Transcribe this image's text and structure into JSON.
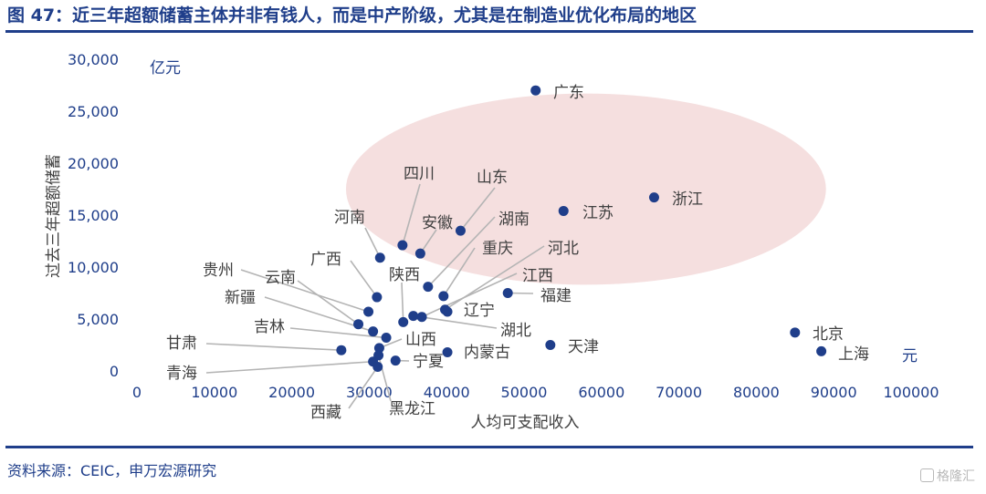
{
  "figure": {
    "title": "图 47：近三年超额储蓄主体并非有钱人，而是中产阶级，尤其是在制造业优化布局的地区",
    "source": "资料来源：CEIC，申万宏源研究",
    "watermark": "格隆汇"
  },
  "colors": {
    "title": "#1f3e8a",
    "point": "#1f3e8a",
    "ellipse": "#f3d9d9",
    "leader": "#b4b4b4",
    "label": "#404040",
    "tick": "#1f3e8a"
  },
  "chart_data": {
    "type": "scatter",
    "xlabel": "人均可支配收入",
    "ylabel": "过去三年超额储蓄",
    "x_unit": "元",
    "y_unit": "亿元",
    "xlim": [
      0,
      100000
    ],
    "ylim": [
      0,
      30000
    ],
    "x_ticks": [
      0,
      10000,
      20000,
      30000,
      40000,
      50000,
      60000,
      70000,
      80000,
      90000,
      100000
    ],
    "x_tick_labels": [
      "0",
      "10000",
      "20000",
      "30000",
      "40000",
      "50000",
      "60000",
      "70000",
      "80000",
      "90000",
      "100000"
    ],
    "y_ticks": [
      0,
      5000,
      10000,
      15000,
      20000,
      25000,
      30000
    ],
    "y_tick_labels": [
      "0",
      "5,000",
      "10,000",
      "15,000",
      "20,000",
      "25,000",
      "30,000"
    ],
    "grid": false,
    "highlight_region": {
      "shape": "ellipse",
      "cx": 58000,
      "cy": 17500,
      "rx": 31000,
      "ry": 9200
    },
    "points": [
      {
        "name": "广东",
        "x": 51500,
        "y": 27000
      },
      {
        "name": "浙江",
        "x": 66800,
        "y": 16700
      },
      {
        "name": "江苏",
        "x": 55100,
        "y": 15400
      },
      {
        "name": "山东",
        "x": 41800,
        "y": 13500
      },
      {
        "name": "四川",
        "x": 34300,
        "y": 12100
      },
      {
        "name": "安徽",
        "x": 36600,
        "y": 11300
      },
      {
        "name": "河南",
        "x": 31400,
        "y": 10900
      },
      {
        "name": "湖南",
        "x": 37600,
        "y": 8100
      },
      {
        "name": "重庆",
        "x": 39600,
        "y": 7200
      },
      {
        "name": "广西",
        "x": 31000,
        "y": 7100
      },
      {
        "name": "福建",
        "x": 47900,
        "y": 7500
      },
      {
        "name": "河北",
        "x": 39800,
        "y": 5900
      },
      {
        "name": "江西",
        "x": 36800,
        "y": 5200
      },
      {
        "name": "辽宁",
        "x": 40100,
        "y": 5700
      },
      {
        "name": "湖北",
        "x": 35700,
        "y": 5300
      },
      {
        "name": "陕西",
        "x": 34400,
        "y": 4700
      },
      {
        "name": "贵州",
        "x": 29900,
        "y": 5700
      },
      {
        "name": "云南",
        "x": 28600,
        "y": 4500
      },
      {
        "name": "新疆",
        "x": 30500,
        "y": 3800
      },
      {
        "name": "吉林",
        "x": 32200,
        "y": 3200
      },
      {
        "name": "甘肃",
        "x": 26400,
        "y": 2000
      },
      {
        "name": "山西",
        "x": 31300,
        "y": 2200
      },
      {
        "name": "内蒙古",
        "x": 40100,
        "y": 1800
      },
      {
        "name": "宁夏",
        "x": 33400,
        "y": 1000
      },
      {
        "name": "青海",
        "x": 30500,
        "y": 900
      },
      {
        "name": "西藏",
        "x": 31100,
        "y": 400
      },
      {
        "name": "黑龙江",
        "x": 31200,
        "y": 1500
      },
      {
        "name": "天津",
        "x": 53400,
        "y": 2500
      },
      {
        "name": "北京",
        "x": 85000,
        "y": 3700
      },
      {
        "name": "上海",
        "x": 88400,
        "y": 1900
      }
    ]
  }
}
